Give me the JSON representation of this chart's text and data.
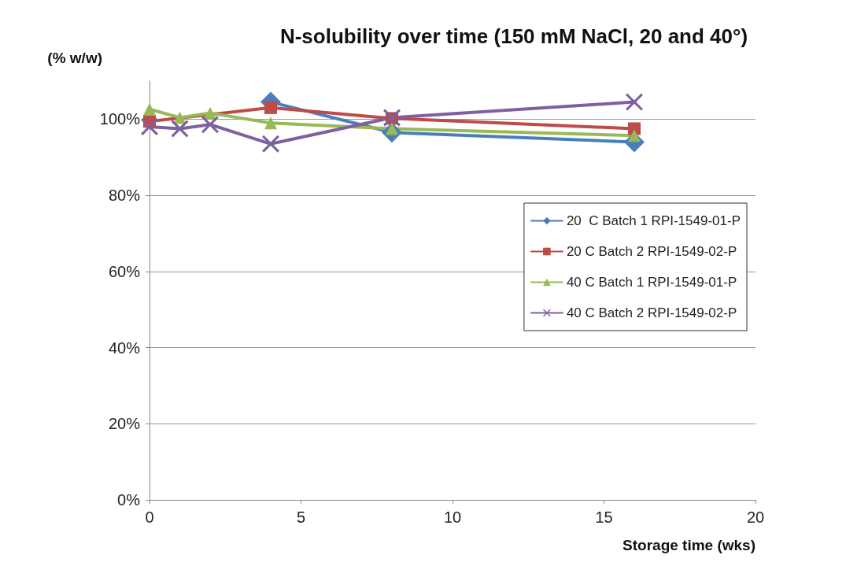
{
  "chart_data": {
    "type": "line",
    "title": "N-solubility over time (150 mM NaCl, 20 and 40°)",
    "ylabel": "(% w/w)",
    "xlabel": "Storage time (wks)",
    "xlim": [
      0,
      20
    ],
    "xticks": [
      0,
      5,
      10,
      15,
      20
    ],
    "ylim": [
      0,
      110
    ],
    "yticks": [
      {
        "value": 0,
        "label": "0%"
      },
      {
        "value": 20,
        "label": "20%"
      },
      {
        "value": 40,
        "label": "40%"
      },
      {
        "value": 60,
        "label": "60%"
      },
      {
        "value": 80,
        "label": "80%"
      },
      {
        "value": 100,
        "label": "100%"
      }
    ],
    "grid": "y",
    "legend": "right",
    "series": [
      {
        "name": "20  C Batch 1 RPI-1549-01-P",
        "color": "#4a7ebb",
        "marker": "diamond",
        "x": [
          4,
          8,
          16
        ],
        "values": [
          104.5,
          96.5,
          94
        ]
      },
      {
        "name": "20 C Batch 2 RPI-1549-02-P",
        "color": "#be4b48",
        "marker": "square",
        "x": [
          0,
          4,
          8,
          16
        ],
        "values": [
          99.4,
          103,
          100.2,
          97.5
        ]
      },
      {
        "name": "40 C Batch 1 RPI-1549-01-P",
        "color": "#98b954",
        "marker": "triangle",
        "x": [
          0,
          1,
          2,
          4,
          8,
          16
        ],
        "values": [
          102.6,
          100.4,
          101.6,
          99,
          97.5,
          95.7
        ]
      },
      {
        "name": "40 C Batch 2 RPI-1549-02-P",
        "color": "#7d60a0",
        "marker": "cross",
        "x": [
          0,
          1,
          2,
          4,
          8,
          16
        ],
        "values": [
          98,
          97.5,
          98.6,
          93.5,
          100.4,
          104.5
        ]
      }
    ]
  }
}
